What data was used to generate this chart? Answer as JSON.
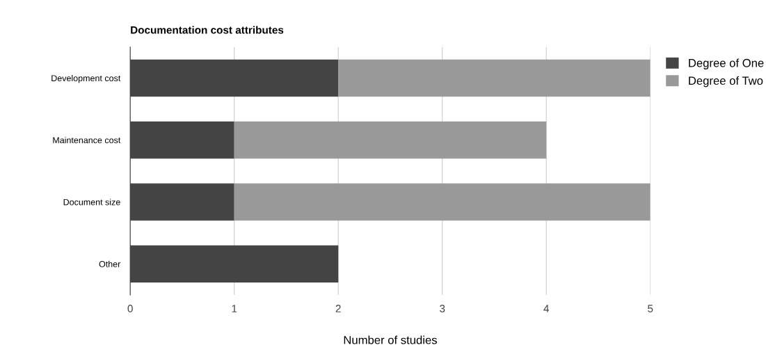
{
  "chart_data": {
    "type": "bar",
    "orientation": "horizontal",
    "stacked": true,
    "title": "Documentation cost attributes",
    "xlabel": "Number of studies",
    "categories": [
      "Development cost",
      "Maintenance cost",
      "Document size",
      "Other"
    ],
    "series": [
      {
        "name": "Degree of One",
        "color": "#444444",
        "values": [
          2,
          1,
          1,
          2
        ]
      },
      {
        "name": "Degree of Two",
        "color": "#999999",
        "values": [
          3,
          3,
          4,
          0
        ]
      }
    ],
    "xlim": [
      0,
      5
    ],
    "xticks": [
      0,
      1,
      2,
      3,
      4,
      5
    ],
    "grid": "x",
    "legend": "right"
  }
}
